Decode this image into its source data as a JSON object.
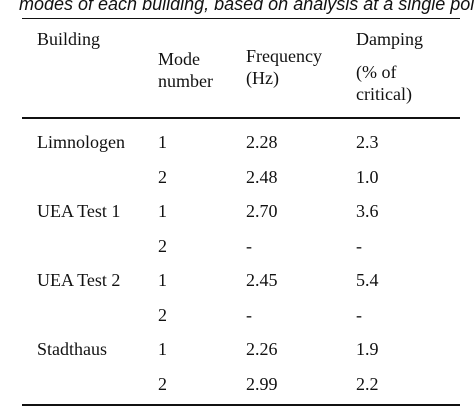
{
  "caption": "modes of each building, based on analysis at a single point",
  "headers": {
    "building": "Building",
    "mode": [
      "Mode",
      "number"
    ],
    "frequency": [
      "Frequency",
      "(Hz)"
    ],
    "damping": "Damping",
    "damping_unit": [
      "(% of",
      "critical)"
    ]
  },
  "rows": [
    {
      "building": "Limnologen",
      "mode": "1",
      "frequency": "2.28",
      "damping": "2.3"
    },
    {
      "building": "",
      "mode": "2",
      "frequency": "2.48",
      "damping": "1.0"
    },
    {
      "building": "UEA Test 1",
      "mode": "1",
      "frequency": "2.70",
      "damping": "3.6"
    },
    {
      "building": "",
      "mode": "2",
      "frequency": "-",
      "damping": "-"
    },
    {
      "building": "UEA Test 2",
      "mode": "1",
      "frequency": "2.45",
      "damping": "5.4"
    },
    {
      "building": "",
      "mode": "2",
      "frequency": "-",
      "damping": "-"
    },
    {
      "building": "Stadthaus",
      "mode": "1",
      "frequency": "2.26",
      "damping": "1.9"
    },
    {
      "building": "",
      "mode": "2",
      "frequency": "2.99",
      "damping": "2.2"
    }
  ]
}
